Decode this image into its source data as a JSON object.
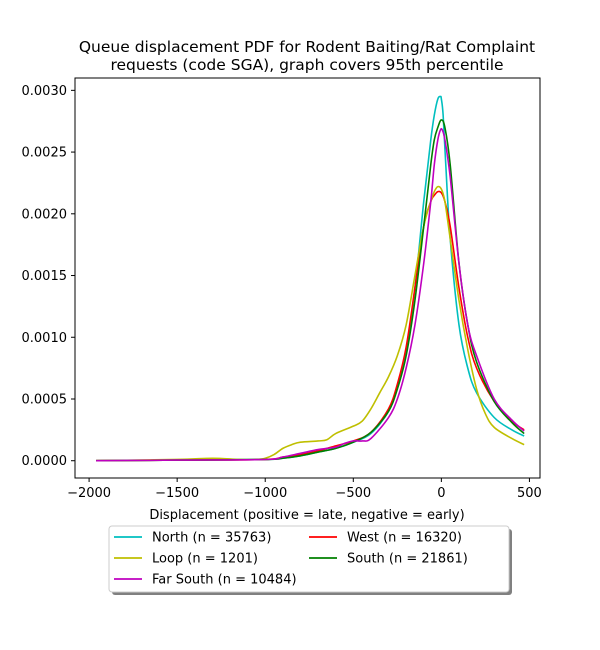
{
  "chart_data": {
    "type": "line",
    "title_lines": [
      "Queue displacement PDF for Rodent Baiting/Rat Complaint",
      "requests (code SGA), graph covers 95th percentile"
    ],
    "xlabel": "Displacement (positive = late, negative = early)",
    "ylabel": "",
    "xlim": [
      -2080,
      560
    ],
    "ylim": [
      -0.00014,
      0.0031
    ],
    "xticks": [
      -2000,
      -1500,
      -1000,
      -500,
      0,
      500
    ],
    "yticks": [
      0.0,
      0.0005,
      0.001,
      0.0015,
      0.002,
      0.0025,
      0.003
    ],
    "xtick_labels": [
      "−2000",
      "−1500",
      "−1000",
      "−500",
      "0",
      "500"
    ],
    "ytick_labels": [
      "0.0000",
      "0.0005",
      "0.0010",
      "0.0015",
      "0.0020",
      "0.0025",
      "0.0030"
    ],
    "grid": false,
    "legend_position": "below-plot",
    "series": [
      {
        "name": "North (n = 35763)",
        "color": "#00bfbf",
        "x": [
          -1960,
          -1500,
          -1000,
          -900,
          -800,
          -700,
          -600,
          -500,
          -400,
          -300,
          -250,
          -200,
          -150,
          -100,
          -60,
          -40,
          -20,
          -5,
          0,
          10,
          25,
          50,
          100,
          150,
          200,
          300,
          400,
          470
        ],
        "y": [
          0.0,
          5e-06,
          1e-05,
          2e-05,
          4e-05,
          7e-05,
          0.0001,
          0.00015,
          0.00022,
          0.0004,
          0.0006,
          0.0009,
          0.0014,
          0.0021,
          0.0026,
          0.0028,
          0.00293,
          0.00295,
          0.00293,
          0.0028,
          0.0024,
          0.0018,
          0.0011,
          0.00075,
          0.00055,
          0.00035,
          0.00025,
          0.0002
        ]
      },
      {
        "name": "West (n = 16320)",
        "color": "#ff0000",
        "x": [
          -1960,
          -1500,
          -1000,
          -900,
          -800,
          -700,
          -600,
          -500,
          -400,
          -300,
          -250,
          -200,
          -150,
          -100,
          -60,
          -40,
          -20,
          0,
          20,
          50,
          100,
          150,
          200,
          300,
          400,
          470
        ],
        "y": [
          0.0,
          5e-06,
          1e-05,
          3e-05,
          5e-05,
          8e-05,
          0.00012,
          0.00016,
          0.00023,
          0.00042,
          0.00062,
          0.00092,
          0.0014,
          0.0019,
          0.0021,
          0.00215,
          0.00218,
          0.00217,
          0.0021,
          0.0019,
          0.0014,
          0.001,
          0.00075,
          0.00048,
          0.00032,
          0.00025
        ]
      },
      {
        "name": "Loop (n = 1201)",
        "color": "#bfbf00",
        "x": [
          -1960,
          -1500,
          -1300,
          -1150,
          -1050,
          -1000,
          -950,
          -900,
          -850,
          -800,
          -700,
          -650,
          -600,
          -500,
          -450,
          -400,
          -350,
          -300,
          -250,
          -200,
          -150,
          -100,
          -60,
          -40,
          -20,
          0,
          20,
          50,
          100,
          150,
          200,
          250,
          300,
          400,
          470
        ],
        "y": [
          0.0,
          1e-05,
          2e-05,
          1e-05,
          1e-05,
          2e-05,
          5e-05,
          0.0001,
          0.00013,
          0.00015,
          0.00016,
          0.00017,
          0.00022,
          0.00028,
          0.00032,
          0.00042,
          0.00055,
          0.00068,
          0.00085,
          0.0011,
          0.0015,
          0.0019,
          0.0021,
          0.00218,
          0.00222,
          0.0022,
          0.0021,
          0.0018,
          0.0013,
          0.0009,
          0.00058,
          0.00038,
          0.00027,
          0.00018,
          0.00013
        ]
      },
      {
        "name": "South (n = 21861)",
        "color": "#008000",
        "x": [
          -1960,
          -1500,
          -1000,
          -900,
          -800,
          -700,
          -600,
          -500,
          -400,
          -300,
          -250,
          -200,
          -150,
          -100,
          -60,
          -40,
          -20,
          0,
          20,
          50,
          100,
          150,
          200,
          300,
          400,
          470
        ],
        "y": [
          0.0,
          5e-06,
          1e-05,
          2e-05,
          4e-05,
          7e-05,
          0.0001,
          0.00015,
          0.00023,
          0.0004,
          0.00058,
          0.00085,
          0.0013,
          0.0019,
          0.0024,
          0.0026,
          0.0027,
          0.00276,
          0.0027,
          0.0024,
          0.0016,
          0.0011,
          0.0008,
          0.00048,
          0.00031,
          0.00022
        ]
      },
      {
        "name": "Far South (n = 10484)",
        "color": "#bf00bf",
        "x": [
          -1960,
          -1500,
          -1000,
          -900,
          -800,
          -700,
          -600,
          -550,
          -500,
          -450,
          -400,
          -300,
          -250,
          -200,
          -150,
          -100,
          -60,
          -40,
          -20,
          -5,
          5,
          20,
          50,
          100,
          150,
          200,
          300,
          400,
          470
        ],
        "y": [
          0.0,
          5e-06,
          1e-05,
          3e-05,
          6e-05,
          9e-05,
          0.00011,
          0.00014,
          0.00016,
          0.00016,
          0.00018,
          0.00035,
          0.0005,
          0.00075,
          0.0011,
          0.0016,
          0.0021,
          0.0024,
          0.0026,
          0.00268,
          0.00268,
          0.0026,
          0.0023,
          0.0016,
          0.0011,
          0.00085,
          0.0005,
          0.00033,
          0.00024
        ]
      }
    ]
  }
}
